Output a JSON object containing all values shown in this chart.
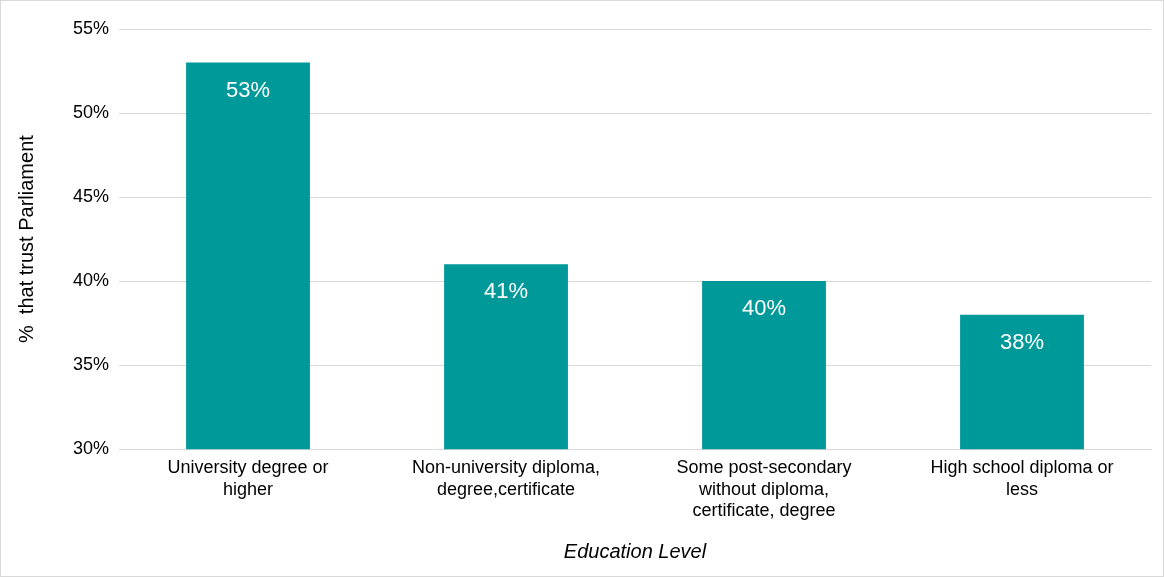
{
  "chart_data": {
    "type": "bar",
    "xlabel": "Education Level",
    "ylabel": "%  that trust Parliament",
    "categories": [
      "University degree or higher",
      "Non-university diploma, degree,certificate",
      "Some post-secondary without diploma, certificate, degree",
      "High school diploma or less"
    ],
    "values": [
      53,
      41,
      40,
      38
    ],
    "value_labels": [
      "53%",
      "41%",
      "40%",
      "38%"
    ],
    "color": "#009999",
    "ylim": [
      30,
      55
    ],
    "yticks": [
      {
        "value": 30,
        "label": "30%"
      },
      {
        "value": 35,
        "label": "35%"
      },
      {
        "value": 40,
        "label": "40%"
      },
      {
        "value": 45,
        "label": "45%"
      },
      {
        "value": 50,
        "label": "50%"
      },
      {
        "value": 55,
        "label": "55%"
      }
    ],
    "grid": "y",
    "legend": false
  }
}
